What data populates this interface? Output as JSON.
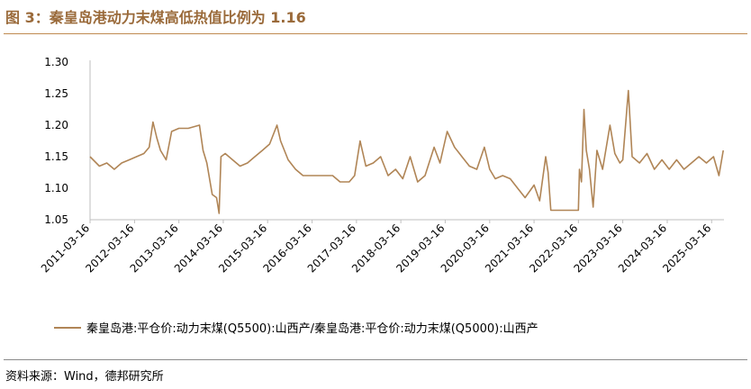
{
  "figure": {
    "title": "图 3：秦皇岛港动力末煤高低热值比例为 1.16",
    "source": "资料来源：Wind，德邦研究所"
  },
  "colors": {
    "series": "#b08556",
    "title": "#9a6a3a",
    "axis": "#bfbfbf"
  },
  "chart_data": {
    "type": "line",
    "title": "",
    "xlabel": "",
    "ylabel": "",
    "ylim": [
      1.05,
      1.3
    ],
    "yticks": [
      "1.05",
      "1.10",
      "1.15",
      "1.20",
      "1.25",
      "1.30"
    ],
    "xticks": [
      "2011-03-16",
      "2012-03-16",
      "2013-03-16",
      "2014-03-16",
      "2015-03-16",
      "2016-03-16",
      "2017-03-16",
      "2018-03-16",
      "2019-03-16",
      "2020-03-16",
      "2021-03-16",
      "2022-03-16",
      "2023-03-16",
      "2024-03-16",
      "2025-03-16"
    ],
    "grid": false,
    "legend": "bottom",
    "series": [
      {
        "name": "秦皇岛港:平仓价:动力末煤(Q5500):山西产/秦皇岛港:平仓价:动力末煤(Q5000):山西产",
        "points": [
          [
            "2011-03-16",
            1.15
          ],
          [
            "2011-06-01",
            1.135
          ],
          [
            "2011-08-01",
            1.14
          ],
          [
            "2011-10-01",
            1.13
          ],
          [
            "2011-12-01",
            1.14
          ],
          [
            "2012-02-01",
            1.145
          ],
          [
            "2012-04-01",
            1.15
          ],
          [
            "2012-06-01",
            1.155
          ],
          [
            "2012-07-15",
            1.165
          ],
          [
            "2012-08-15",
            1.205
          ],
          [
            "2012-09-15",
            1.18
          ],
          [
            "2012-10-15",
            1.16
          ],
          [
            "2012-12-01",
            1.145
          ],
          [
            "2013-01-15",
            1.19
          ],
          [
            "2013-03-16",
            1.195
          ],
          [
            "2013-06-01",
            1.195
          ],
          [
            "2013-09-01",
            1.2
          ],
          [
            "2013-10-01",
            1.16
          ],
          [
            "2013-11-01",
            1.14
          ],
          [
            "2013-12-15",
            1.09
          ],
          [
            "2014-01-20",
            1.085
          ],
          [
            "2014-02-10",
            1.06
          ],
          [
            "2014-02-25",
            1.15
          ],
          [
            "2014-04-01",
            1.155
          ],
          [
            "2014-06-01",
            1.145
          ],
          [
            "2014-08-01",
            1.135
          ],
          [
            "2014-10-01",
            1.14
          ],
          [
            "2014-12-01",
            1.15
          ],
          [
            "2015-02-01",
            1.16
          ],
          [
            "2015-04-01",
            1.17
          ],
          [
            "2015-06-01",
            1.2
          ],
          [
            "2015-07-01",
            1.175
          ],
          [
            "2015-09-01",
            1.145
          ],
          [
            "2015-11-01",
            1.13
          ],
          [
            "2016-01-01",
            1.12
          ],
          [
            "2016-03-16",
            1.12
          ],
          [
            "2016-06-01",
            1.12
          ],
          [
            "2016-09-01",
            1.12
          ],
          [
            "2016-11-01",
            1.11
          ],
          [
            "2017-01-15",
            1.11
          ],
          [
            "2017-03-01",
            1.12
          ],
          [
            "2017-04-15",
            1.175
          ],
          [
            "2017-06-01",
            1.135
          ],
          [
            "2017-08-01",
            1.14
          ],
          [
            "2017-10-01",
            1.15
          ],
          [
            "2017-12-01",
            1.12
          ],
          [
            "2018-02-01",
            1.13
          ],
          [
            "2018-04-01",
            1.115
          ],
          [
            "2018-06-01",
            1.15
          ],
          [
            "2018-08-01",
            1.11
          ],
          [
            "2018-10-01",
            1.12
          ],
          [
            "2018-12-15",
            1.165
          ],
          [
            "2019-02-01",
            1.14
          ],
          [
            "2019-04-01",
            1.19
          ],
          [
            "2019-06-01",
            1.165
          ],
          [
            "2019-08-01",
            1.15
          ],
          [
            "2019-10-01",
            1.135
          ],
          [
            "2019-12-01",
            1.13
          ],
          [
            "2020-02-01",
            1.165
          ],
          [
            "2020-03-16",
            1.13
          ],
          [
            "2020-05-01",
            1.115
          ],
          [
            "2020-07-01",
            1.12
          ],
          [
            "2020-09-01",
            1.115
          ],
          [
            "2020-11-01",
            1.1
          ],
          [
            "2021-01-01",
            1.085
          ],
          [
            "2021-03-16",
            1.105
          ],
          [
            "2021-05-01",
            1.08
          ],
          [
            "2021-06-20",
            1.15
          ],
          [
            "2021-07-10",
            1.125
          ],
          [
            "2021-08-01",
            1.065
          ],
          [
            "2022-02-15",
            1.065
          ],
          [
            "2022-03-16",
            1.065
          ],
          [
            "2022-03-25",
            1.13
          ],
          [
            "2022-04-10",
            1.11
          ],
          [
            "2022-05-01",
            1.225
          ],
          [
            "2022-05-20",
            1.16
          ],
          [
            "2022-06-15",
            1.13
          ],
          [
            "2022-07-15",
            1.07
          ],
          [
            "2022-08-15",
            1.16
          ],
          [
            "2022-10-01",
            1.13
          ],
          [
            "2022-12-01",
            1.2
          ],
          [
            "2023-01-10",
            1.155
          ],
          [
            "2023-02-20",
            1.14
          ],
          [
            "2023-03-16",
            1.145
          ],
          [
            "2023-05-01",
            1.255
          ],
          [
            "2023-06-01",
            1.15
          ],
          [
            "2023-08-01",
            1.14
          ],
          [
            "2023-10-01",
            1.155
          ],
          [
            "2023-12-01",
            1.13
          ],
          [
            "2024-02-01",
            1.145
          ],
          [
            "2024-04-01",
            1.13
          ],
          [
            "2024-06-01",
            1.145
          ],
          [
            "2024-08-01",
            1.13
          ],
          [
            "2024-10-01",
            1.14
          ],
          [
            "2024-12-01",
            1.15
          ],
          [
            "2025-02-01",
            1.14
          ],
          [
            "2025-04-01",
            1.15
          ],
          [
            "2025-05-15",
            1.12
          ],
          [
            "2025-06-20",
            1.16
          ]
        ]
      }
    ]
  }
}
